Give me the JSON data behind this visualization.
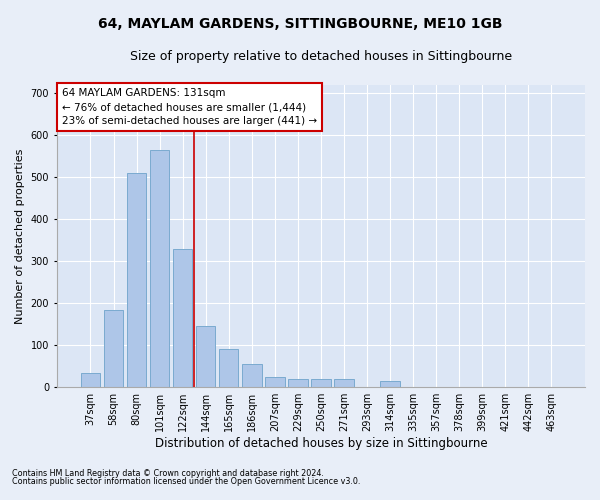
{
  "title": "64, MAYLAM GARDENS, SITTINGBOURNE, ME10 1GB",
  "subtitle": "Size of property relative to detached houses in Sittingbourne",
  "xlabel": "Distribution of detached houses by size in Sittingbourne",
  "ylabel": "Number of detached properties",
  "footnote1": "Contains HM Land Registry data © Crown copyright and database right 2024.",
  "footnote2": "Contains public sector information licensed under the Open Government Licence v3.0.",
  "categories": [
    "37sqm",
    "58sqm",
    "80sqm",
    "101sqm",
    "122sqm",
    "144sqm",
    "165sqm",
    "186sqm",
    "207sqm",
    "229sqm",
    "250sqm",
    "271sqm",
    "293sqm",
    "314sqm",
    "335sqm",
    "357sqm",
    "378sqm",
    "399sqm",
    "421sqm",
    "442sqm",
    "463sqm"
  ],
  "values": [
    35,
    185,
    510,
    565,
    330,
    145,
    90,
    55,
    25,
    20,
    20,
    20,
    0,
    15,
    0,
    0,
    0,
    0,
    0,
    0,
    0
  ],
  "bar_color": "#aec6e8",
  "bar_edge_color": "#7aaad0",
  "vline_color": "#cc0000",
  "annotation_text": "64 MAYLAM GARDENS: 131sqm\n← 76% of detached houses are smaller (1,444)\n23% of semi-detached houses are larger (441) →",
  "annotation_box_facecolor": "#ffffff",
  "annotation_box_edgecolor": "#cc0000",
  "ylim": [
    0,
    720
  ],
  "yticks": [
    0,
    100,
    200,
    300,
    400,
    500,
    600,
    700
  ],
  "background_color": "#e8eef8",
  "plot_bg_color": "#dce6f5",
  "title_fontsize": 10,
  "subtitle_fontsize": 9,
  "xlabel_fontsize": 8.5,
  "ylabel_fontsize": 8,
  "tick_fontsize": 7,
  "annotation_fontsize": 7.5,
  "footnote_fontsize": 5.8
}
